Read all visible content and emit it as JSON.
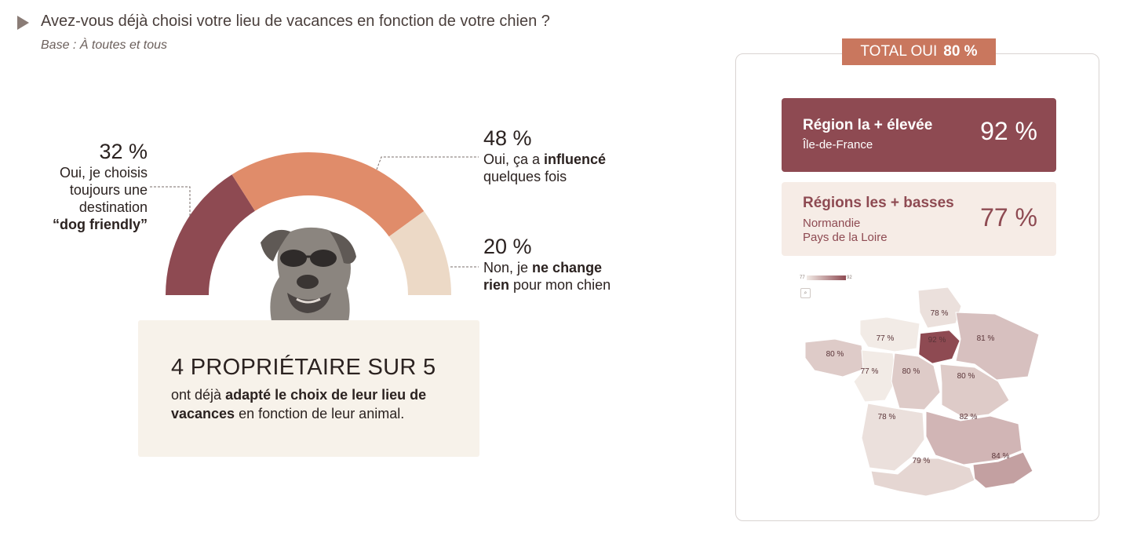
{
  "header": {
    "title": "Avez-vous déjà choisi votre lieu de vacances en fonction de votre chien ?",
    "subtitle": "Base : À toutes et tous"
  },
  "chart_data": [
    {
      "type": "pie",
      "subtype": "half-donut",
      "title": "",
      "slices": [
        {
          "value": 32,
          "pct_label": "32 %",
          "color": "#8e4a52"
        },
        {
          "value": 48,
          "pct_label": "48 %",
          "color": "#e08c6a"
        },
        {
          "value": 20,
          "pct_label": "20 %",
          "color": "#ecd9c6"
        }
      ],
      "labels": {
        "s0_line1": "Oui, je choisis",
        "s0_line2": "toujours une",
        "s0_line3": "destination",
        "s0_bold": "“dog friendly”",
        "s1_pre": "Oui, ça a ",
        "s1_bold": "influencé",
        "s1_post": "quelques fois",
        "s2_pre": "Non, je ",
        "s2_bold1": "ne change",
        "s2_bold2": "rien",
        "s2_post": " pour mon chien"
      }
    },
    {
      "type": "heatmap",
      "subtype": "choropleth-map",
      "title": "",
      "scale": {
        "min": 77,
        "max": 92,
        "min_label": "77",
        "max_label": "92"
      },
      "regions": [
        {
          "name": "Hauts-de-France",
          "value": 78,
          "label": "78 %"
        },
        {
          "name": "Normandie",
          "value": 77,
          "label": "77 %"
        },
        {
          "name": "Île-de-France",
          "value": 92,
          "label": "92 %"
        },
        {
          "name": "Grand Est",
          "value": 81,
          "label": "81 %"
        },
        {
          "name": "Bretagne",
          "value": 80,
          "label": "80 %"
        },
        {
          "name": "Pays de la Loire",
          "value": 77,
          "label": "77 %"
        },
        {
          "name": "Centre-Val de Loire",
          "value": 80,
          "label": "80 %"
        },
        {
          "name": "Bourgogne-Franche-Comté",
          "value": 80,
          "label": "80 %"
        },
        {
          "name": "Nouvelle-Aquitaine",
          "value": 78,
          "label": "78 %"
        },
        {
          "name": "Auvergne-Rhône-Alpes",
          "value": 82,
          "label": "82 %"
        },
        {
          "name": "Occitanie",
          "value": 79,
          "label": "79 %"
        },
        {
          "name": "Provence-Alpes-Côte d'Azur",
          "value": 84,
          "label": "84 %"
        }
      ]
    }
  ],
  "summary": {
    "headline": "4 PROPRIÉTAIRE SUR 5",
    "text_pre": "ont déjà ",
    "text_bold": "adapté le choix de leur lieu de vacances",
    "text_post": " en fonction de leur animal."
  },
  "panel": {
    "total_label": "TOTAL OUI",
    "total_value": "80 %",
    "high": {
      "title": "Région la + élevée",
      "region": "Île-de-France",
      "value": "92 %"
    },
    "low": {
      "title": "Régions les + basses",
      "region1": "Normandie",
      "region2": "Pays de la Loire",
      "value": "77 %"
    },
    "search_icon": "search-icon"
  },
  "colors": {
    "dark": "#8e4a52",
    "mid": "#e08c6a",
    "light": "#ecd9c6",
    "badge": "#c9775e",
    "box": "#f7f2ea"
  }
}
